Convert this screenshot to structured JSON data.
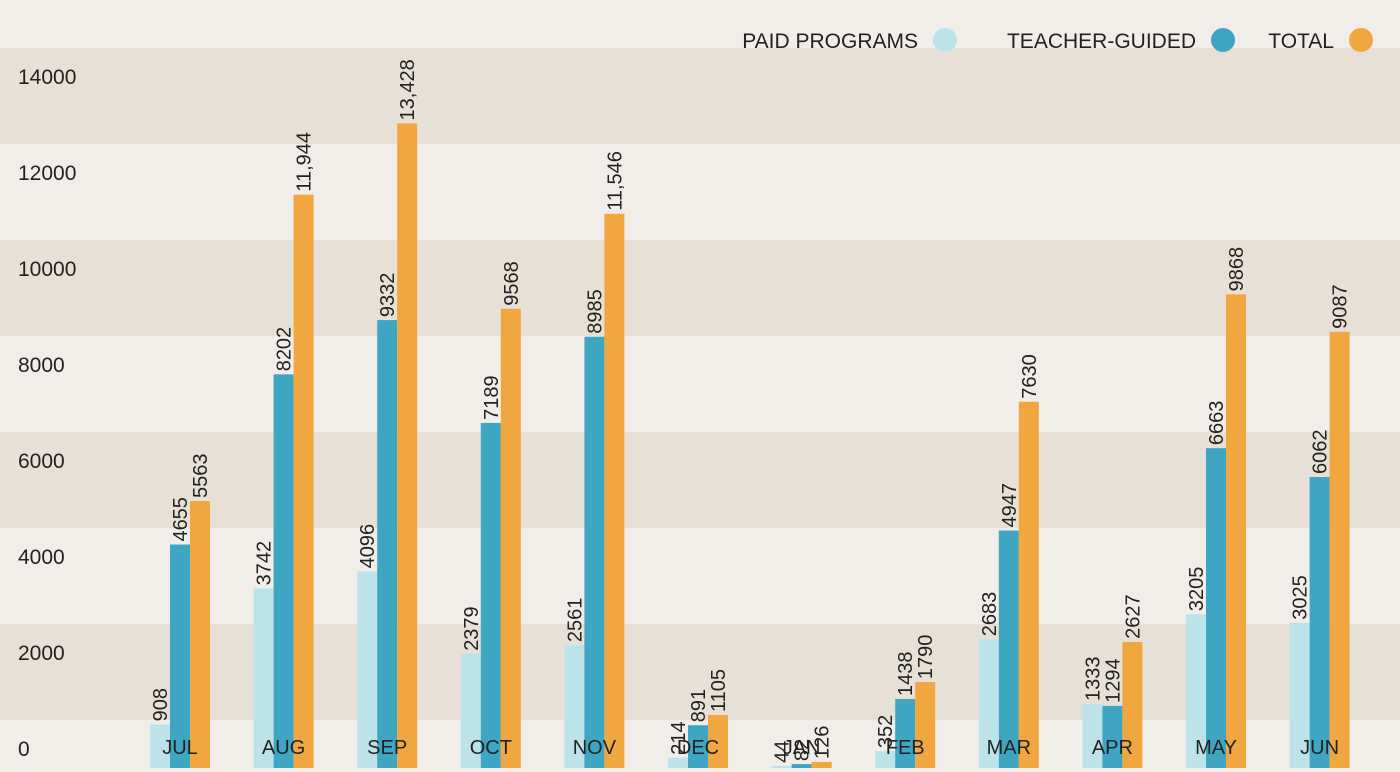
{
  "chart_data": {
    "type": "bar",
    "categories": [
      "JUL",
      "AUG",
      "SEP",
      "OCT",
      "NOV",
      "DEC",
      "JAN",
      "FEB",
      "MAR",
      "APR",
      "MAY",
      "JUN"
    ],
    "series": [
      {
        "name": "PAID PROGRAMS",
        "color": "#bde3ea",
        "values": [
          908,
          3742,
          4096,
          2379,
          2561,
          214,
          44,
          352,
          2683,
          1333,
          3205,
          3025
        ],
        "labels": [
          "908",
          "3742",
          "4096",
          "2379",
          "2561",
          "214",
          "44",
          "352",
          "2683",
          "1333",
          "3205",
          "3025"
        ]
      },
      {
        "name": "TEACHER-GUIDED",
        "color": "#3ea6c2",
        "values": [
          4655,
          8202,
          9332,
          7189,
          8985,
          891,
          82,
          1438,
          4947,
          1294,
          6663,
          6062
        ],
        "labels": [
          "4655",
          "8202",
          "9332",
          "7189",
          "8985",
          "891",
          "82",
          "1438",
          "4947",
          "1294",
          "6663",
          "6062"
        ]
      },
      {
        "name": "TOTAL",
        "color": "#f0a73f",
        "values": [
          5563,
          11944,
          13428,
          9568,
          11546,
          1105,
          126,
          1790,
          7630,
          2627,
          9868,
          9087
        ],
        "labels": [
          "5563",
          "11,944",
          "13,428",
          "9568",
          "11,546",
          "1105",
          "126",
          "1790",
          "7630",
          "2627",
          "9868",
          "9087"
        ]
      }
    ],
    "yticks": [
      "0",
      "2000",
      "4000",
      "6000",
      "8000",
      "10000",
      "12000",
      "14000"
    ],
    "ylim": [
      0,
      16000
    ],
    "grid": "alternating horizontal bands",
    "band_colors": [
      "#e7e0d6",
      "#f1eee9"
    ],
    "legend_position": "top-right"
  }
}
